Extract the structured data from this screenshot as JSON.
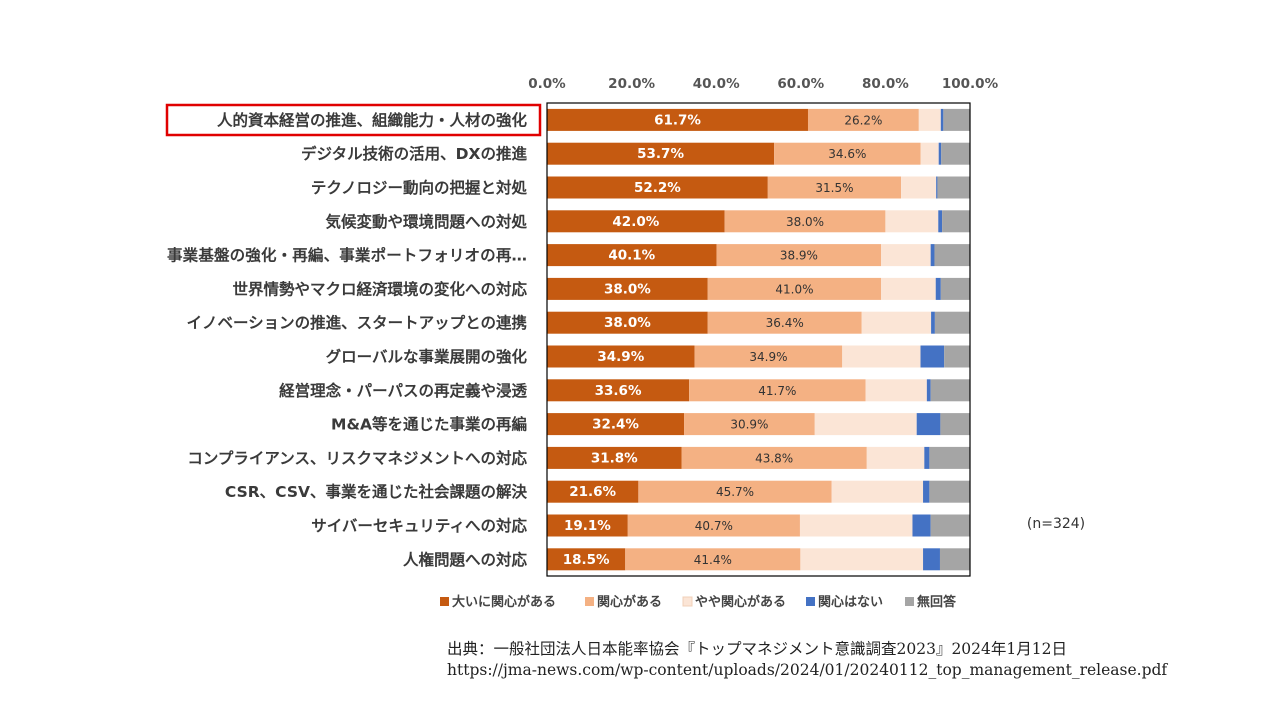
{
  "chart_data": {
    "type": "bar",
    "orientation": "horizontal",
    "stacked": true,
    "xlim": [
      0,
      100
    ],
    "x_ticks": [
      "0.0%",
      "20.0%",
      "40.0%",
      "60.0%",
      "80.0%",
      "100.0%"
    ],
    "categories": [
      "人的資本経営の推進、組織能力・人材の強化",
      "デジタル技術の活用、DXの推進",
      "テクノロジー動向の把握と対処",
      "気候変動や環境問題への対処",
      "事業基盤の強化・再編、事業ポートフォリオの再…",
      "世界情勢やマクロ経済環境の変化への対応",
      "イノベーションの推進、スタートアップとの連携",
      "グローバルな事業展開の強化",
      "経営理念・パーパスの再定義や浸透",
      "M&A等を通じた事業の再編",
      "コンプライアンス、リスクマネジメントへの対応",
      "CSR、CSV、事業を通じた社会課題の解決",
      "サイバーセキュリティへの対応",
      "人権問題への対応"
    ],
    "highlighted_category_index": 0,
    "series": [
      {
        "name": "大いに関心がある",
        "color": "#c55a11",
        "values": [
          61.7,
          53.7,
          52.2,
          42.0,
          40.1,
          38.0,
          38.0,
          34.9,
          33.6,
          32.4,
          31.8,
          21.6,
          19.1,
          18.5
        ],
        "labels": [
          "61.7%",
          "53.7%",
          "52.2%",
          "42.0%",
          "40.1%",
          "38.0%",
          "38.0%",
          "34.9%",
          "33.6%",
          "32.4%",
          "31.8%",
          "21.6%",
          "19.1%",
          "18.5%"
        ]
      },
      {
        "name": "関心がある",
        "color": "#f4b183",
        "values": [
          26.2,
          34.6,
          31.5,
          38.0,
          38.9,
          41.0,
          36.4,
          34.9,
          41.7,
          30.9,
          43.8,
          45.7,
          40.7,
          41.4
        ],
        "labels": [
          "26.2%",
          "34.6%",
          "31.5%",
          "38.0%",
          "38.9%",
          "41.0%",
          "36.4%",
          "34.9%",
          "41.7%",
          "30.9%",
          "43.8%",
          "45.7%",
          "40.7%",
          "41.4%"
        ]
      },
      {
        "name": "やや関心がある",
        "color": "#fbe5d6",
        "values": [
          5.2,
          4.3,
          8.3,
          12.5,
          11.7,
          12.9,
          16.4,
          18.5,
          14.5,
          24.1,
          13.6,
          21.6,
          26.6,
          29.0
        ]
      },
      {
        "name": "関心はない",
        "color": "#4472c4",
        "values": [
          0.6,
          0.6,
          0.3,
          0.9,
          0.9,
          1.2,
          0.9,
          5.6,
          0.9,
          5.6,
          1.2,
          1.5,
          4.3,
          4.0
        ]
      },
      {
        "name": "無回答",
        "color": "#a5a5a5",
        "values": [
          6.3,
          6.8,
          7.7,
          6.6,
          8.4,
          6.9,
          8.3,
          6.1,
          9.3,
          7.0,
          9.6,
          9.6,
          9.3,
          7.1
        ]
      }
    ],
    "annotation": "(n=324)"
  },
  "source": {
    "line1": "出典：一般社団法人日本能率協会『トップマネジメント意識調査2023』2024年1月12日",
    "line2": "https://jma-news.com/wp-content/uploads/2024/01/20240112_top_management_release.pdf"
  }
}
